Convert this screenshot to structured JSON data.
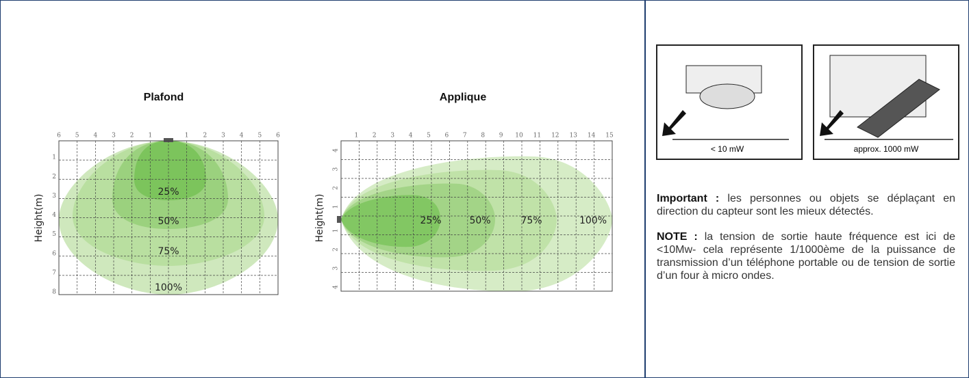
{
  "plafond": {
    "title": "Plafond",
    "axis_label": "Height(m)",
    "top_ticks": [
      "6",
      "5",
      "4",
      "3",
      "2",
      "1",
      "1",
      "2",
      "3",
      "4",
      "5",
      "6"
    ],
    "side_ticks": [
      "1",
      "2",
      "3",
      "4",
      "5",
      "6",
      "7",
      "8"
    ],
    "zones": [
      "25%",
      "50%",
      "75%",
      "100%"
    ]
  },
  "applique": {
    "title": "Applique",
    "axis_label": "Height(m)",
    "top_ticks": [
      "1",
      "2",
      "3",
      "4",
      "5",
      "6",
      "7",
      "8",
      "9",
      "10",
      "11",
      "12",
      "13",
      "14",
      "15"
    ],
    "side_ticks": [
      "4",
      "3",
      "2",
      "1",
      "1",
      "2",
      "3",
      "4"
    ],
    "zones": [
      "25%",
      "50%",
      "75%",
      "100%"
    ]
  },
  "images": [
    {
      "caption": "< 10 mW"
    },
    {
      "caption": "approx. 1000 mW"
    }
  ],
  "notes": [
    {
      "lead": "Important :",
      "text": " les personnes ou objets se déplaçant en direction du capteur sont les mieux détectés."
    },
    {
      "lead": "NOTE :",
      "text": " la tension de sortie haute fréquence est ici de <10Mw- cela représente 1/1000ème de la puissance de transmission d’un téléphone portable ou de tension de sortie d’un four à micro ondes."
    }
  ]
}
